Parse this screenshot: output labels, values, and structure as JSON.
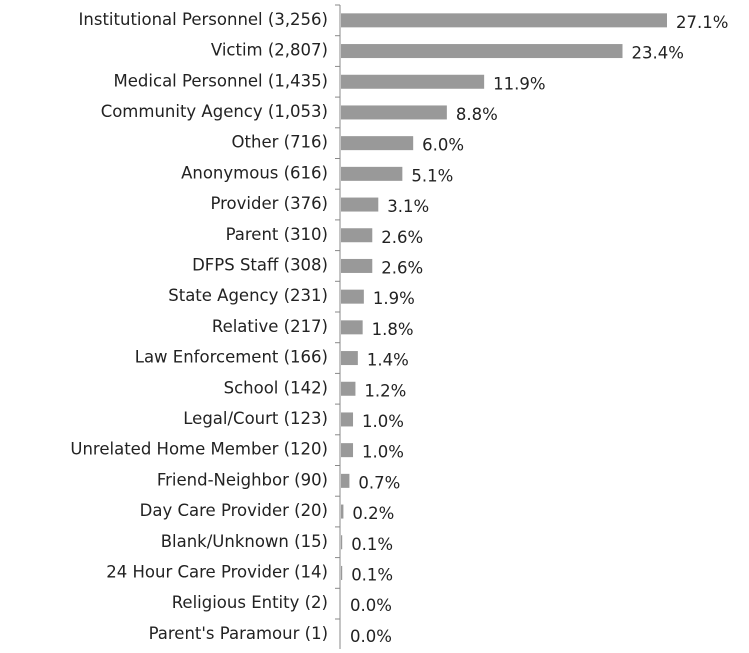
{
  "chart_data": {
    "type": "bar",
    "orientation": "horizontal",
    "color": "#999999",
    "categories": [
      "Institutional Personnel (3,256)",
      "Victim (2,807)",
      "Medical Personnel (1,435)",
      "Community Agency (1,053)",
      "Other (716)",
      "Anonymous (616)",
      "Provider (376)",
      "Parent (310)",
      "DFPS Staff (308)",
      "State Agency (231)",
      "Relative (217)",
      "Law Enforcement (166)",
      "School (142)",
      "Legal/Court (123)",
      "Unrelated Home Member (120)",
      "Friend-Neighbor (90)",
      "Day Care Provider (20)",
      "Blank/Unknown (15)",
      "24 Hour Care Provider (14)",
      "Religious Entity (2)",
      "Parent's Paramour (1)"
    ],
    "values": [
      27.1,
      23.4,
      11.9,
      8.8,
      6.0,
      5.1,
      3.1,
      2.6,
      2.6,
      1.9,
      1.8,
      1.4,
      1.2,
      1.0,
      1.0,
      0.7,
      0.2,
      0.1,
      0.1,
      0.0,
      0.0
    ],
    "value_labels": [
      "27.1%",
      "23.4%",
      "11.9%",
      "8.8%",
      "6.0%",
      "5.1%",
      "3.1%",
      "2.6%",
      "2.6%",
      "1.9%",
      "1.8%",
      "1.4%",
      "1.2%",
      "1.0%",
      "1.0%",
      "0.7%",
      "0.2%",
      "0.1%",
      "0.1%",
      "0.0%",
      "0.0%"
    ]
  }
}
